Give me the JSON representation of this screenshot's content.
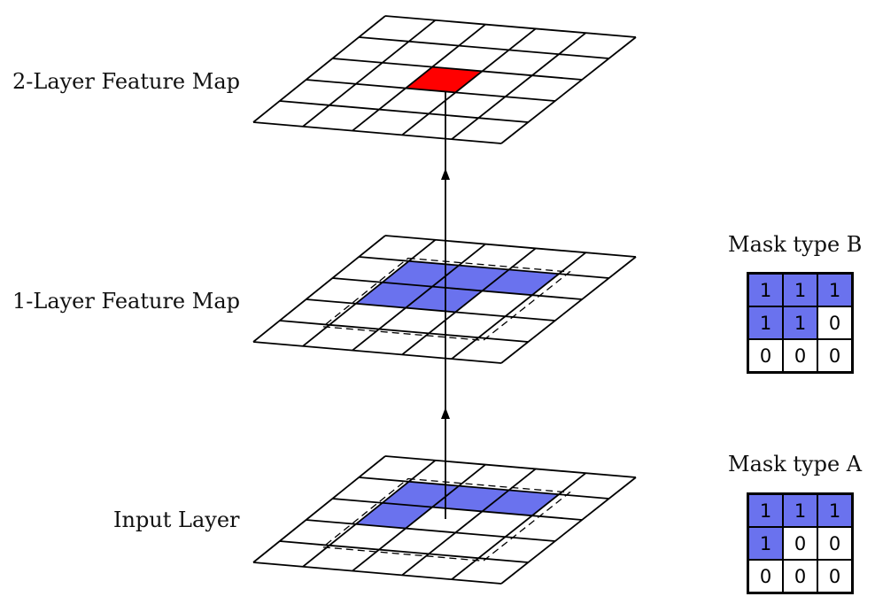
{
  "labels": {
    "two_layer": "2-Layer Feature Map",
    "one_layer": "1-Layer Feature Map",
    "input": "Input Layer"
  },
  "colors": {
    "highlight_blue": "#6a72ee",
    "highlight_red": "#ff0000",
    "line": "#000000"
  },
  "feature_maps": [
    {
      "name": "two-layer-feature-map",
      "rows": 5,
      "cols": 5,
      "highlight_cells": [
        [
          2,
          2
        ]
      ],
      "highlight_color": "red"
    },
    {
      "name": "one-layer-feature-map",
      "rows": 5,
      "cols": 5,
      "highlight_cells": [
        [
          1,
          1
        ],
        [
          1,
          2
        ],
        [
          1,
          3
        ],
        [
          2,
          1
        ],
        [
          2,
          2
        ]
      ],
      "highlight_color": "blue",
      "dashed_region": true
    },
    {
      "name": "input-layer",
      "rows": 5,
      "cols": 5,
      "highlight_cells": [
        [
          1,
          1
        ],
        [
          1,
          2
        ],
        [
          1,
          3
        ],
        [
          2,
          1
        ]
      ],
      "highlight_color": "blue",
      "dashed_region": true
    }
  ],
  "mask_b": {
    "title": "Mask type B",
    "cells": [
      [
        "1",
        "1",
        "1"
      ],
      [
        "1",
        "1",
        "0"
      ],
      [
        "0",
        "0",
        "0"
      ]
    ],
    "on": [
      [
        true,
        true,
        true
      ],
      [
        true,
        true,
        false
      ],
      [
        false,
        false,
        false
      ]
    ]
  },
  "mask_a": {
    "title": "Mask type A",
    "cells": [
      [
        "1",
        "1",
        "1"
      ],
      [
        "1",
        "0",
        "0"
      ],
      [
        "0",
        "0",
        "0"
      ]
    ],
    "on": [
      [
        true,
        true,
        true
      ],
      [
        true,
        false,
        false
      ],
      [
        false,
        false,
        false
      ]
    ]
  }
}
